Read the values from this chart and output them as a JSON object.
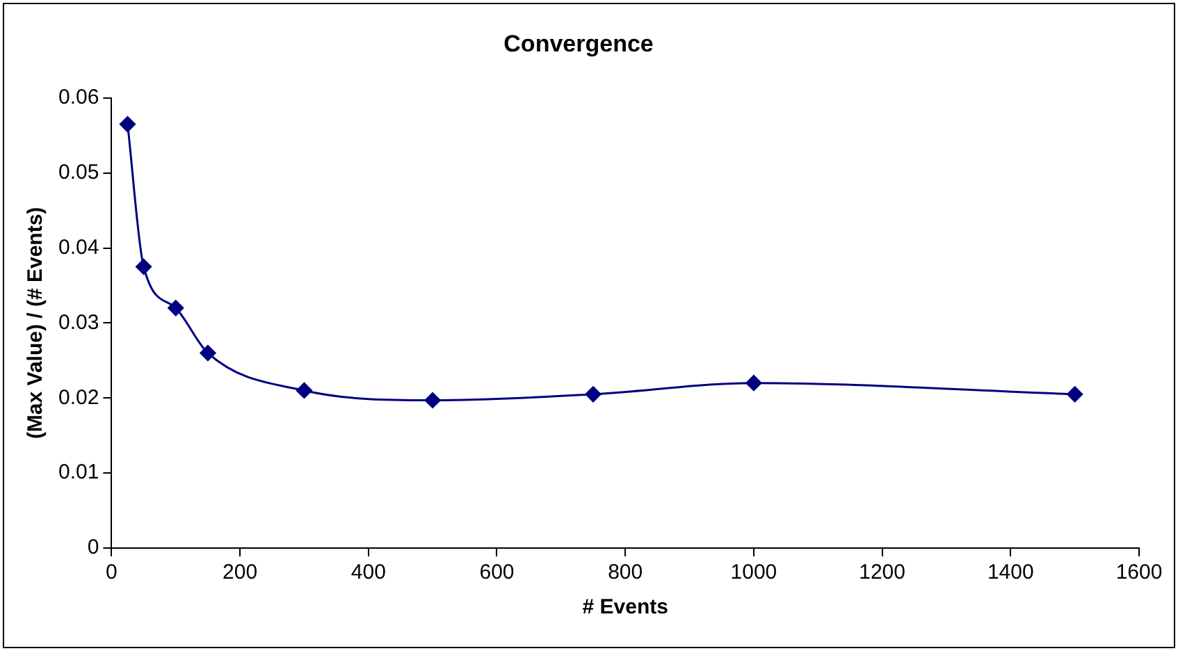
{
  "chart_data": {
    "type": "line",
    "title": "Convergence",
    "xlabel": "# Events",
    "ylabel": "(Max Value) / (# Events)",
    "x": [
      25,
      50,
      100,
      150,
      300,
      500,
      750,
      1000,
      1500
    ],
    "series": [
      {
        "color": "#000080",
        "values": [
          0.0565,
          0.0375,
          0.032,
          0.026,
          0.021,
          0.0197,
          0.0205,
          0.022,
          0.0205
        ]
      }
    ],
    "xlim": [
      0,
      1600
    ],
    "xticks": [
      0,
      200,
      400,
      600,
      800,
      1000,
      1200,
      1400,
      1600
    ],
    "ylim": [
      0,
      0.06
    ],
    "yticks": [
      0,
      0.01,
      0.02,
      0.03,
      0.04,
      0.05,
      0.06
    ],
    "grid": false,
    "legend": false,
    "marker": "diamond",
    "line_style": "solid"
  }
}
